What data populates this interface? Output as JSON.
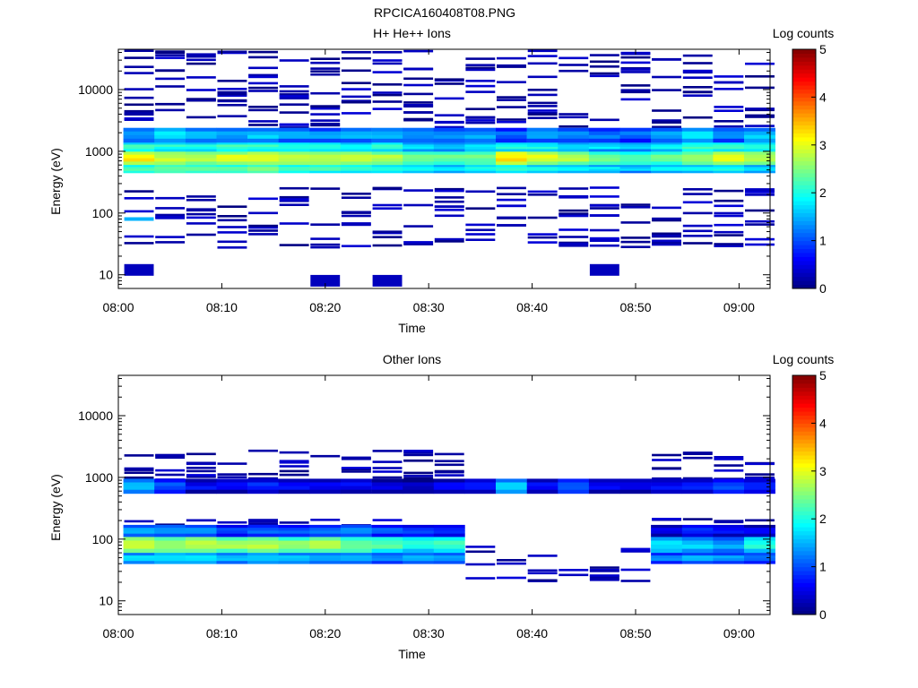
{
  "figure_title": "RPCICA160408T08.PNG",
  "chart_data": [
    {
      "type": "heatmap",
      "title": "H+ He++ Ions",
      "xlabel": "Time",
      "ylabel": "Energy (eV)",
      "y_scale": "log",
      "xlim": [
        "08:00",
        "09:03"
      ],
      "ylim": [
        6,
        45000
      ],
      "x_ticks": [
        "08:00",
        "08:10",
        "08:20",
        "08:30",
        "08:40",
        "08:50",
        "09:00"
      ],
      "y_ticks": [
        "10",
        "100",
        "1000",
        "10000"
      ],
      "colorbar": {
        "label": "Log counts",
        "range": [
          0,
          5
        ],
        "ticks": [
          "0",
          "1",
          "2",
          "3",
          "4",
          "5"
        ]
      },
      "time_bins": [
        "08:02",
        "08:05",
        "08:08",
        "08:11",
        "08:14",
        "08:17",
        "08:20",
        "08:23",
        "08:26",
        "08:29",
        "08:32",
        "08:35",
        "08:38",
        "08:41",
        "08:44",
        "08:47",
        "08:50",
        "08:53",
        "08:56",
        "08:59",
        "09:02"
      ],
      "bands": [
        {
          "energy_range": [
            600,
            1000
          ],
          "level": [
            3.4,
            3.0,
            3.0,
            3.1,
            3.2,
            3.1,
            3.0,
            3.0,
            2.9,
            2.7,
            2.5,
            2.6,
            3.4,
            3.1,
            2.9,
            2.7,
            2.5,
            2.6,
            2.9,
            3.2,
            3.0
          ]
        },
        {
          "energy_range": [
            450,
            600
          ],
          "level": [
            2.4,
            2.6,
            2.6,
            2.6,
            2.7,
            2.5,
            2.4,
            2.3,
            2.3,
            2.2,
            2.0,
            2.1,
            2.3,
            2.2,
            2.1,
            2.0,
            1.8,
            2.0,
            2.1,
            2.2,
            2.0
          ]
        },
        {
          "energy_range": [
            1000,
            1400
          ],
          "level": [
            2.3,
            2.2,
            2.1,
            2.4,
            2.3,
            2.3,
            2.2,
            2.1,
            2.2,
            2.0,
            1.8,
            2.0,
            2.2,
            2.1,
            2.0,
            1.9,
            1.8,
            2.0,
            2.3,
            2.4,
            2.2
          ]
        },
        {
          "energy_range": [
            1400,
            2400
          ],
          "level": [
            1.6,
            1.9,
            1.7,
            1.6,
            1.8,
            1.6,
            1.5,
            1.6,
            1.7,
            1.6,
            1.5,
            1.6,
            1.3,
            1.6,
            1.5,
            1.4,
            1.3,
            1.6,
            1.9,
            1.5,
            1.8
          ]
        }
      ],
      "sparse_levels": "0-1.2 Log counts above 2500 eV and below 300 eV",
      "highlights": [
        {
          "time": "08:02",
          "energy": 80,
          "level": 1.5
        },
        {
          "time": "08:02",
          "energy": 12,
          "level": 0.3
        },
        {
          "time": "08:20",
          "energy": 8,
          "level": 0.3
        },
        {
          "time": "08:26",
          "energy": 8,
          "level": 0.3
        },
        {
          "time": "08:47",
          "energy": 12,
          "level": 0.3
        }
      ]
    },
    {
      "type": "heatmap",
      "title": "Other Ions",
      "xlabel": "Time",
      "ylabel": "Energy (eV)",
      "y_scale": "log",
      "xlim": [
        "08:00",
        "09:03"
      ],
      "ylim": [
        6,
        45000
      ],
      "x_ticks": [
        "08:00",
        "08:10",
        "08:20",
        "08:30",
        "08:40",
        "08:50",
        "09:00"
      ],
      "y_ticks": [
        "10",
        "100",
        "1000",
        "10000"
      ],
      "colorbar": {
        "label": "Log counts",
        "range": [
          0,
          5
        ],
        "ticks": [
          "0",
          "1",
          "2",
          "3",
          "4",
          "5"
        ]
      },
      "time_bins": [
        "08:02",
        "08:05",
        "08:08",
        "08:11",
        "08:14",
        "08:17",
        "08:20",
        "08:23",
        "08:26",
        "08:29",
        "08:32",
        "08:35",
        "08:38",
        "08:41",
        "08:44",
        "08:47",
        "08:50",
        "08:53",
        "08:56",
        "08:59",
        "09:02"
      ],
      "bands": [
        {
          "energy_range": [
            60,
            110
          ],
          "level": [
            3.0,
            2.8,
            2.9,
            2.8,
            2.9,
            2.7,
            2.9,
            2.6,
            2.4,
            2.2,
            2.3,
            null,
            null,
            null,
            null,
            null,
            null,
            2.0,
            1.8,
            1.6,
            2.2
          ]
        },
        {
          "energy_range": [
            40,
            60
          ],
          "level": [
            1.8,
            2.0,
            1.9,
            1.7,
            1.9,
            1.8,
            1.6,
            1.7,
            1.5,
            1.6,
            1.5,
            null,
            null,
            null,
            null,
            null,
            null,
            1.4,
            1.6,
            1.5,
            1.4
          ]
        },
        {
          "energy_range": [
            110,
            170
          ],
          "level": [
            1.6,
            1.5,
            1.4,
            1.2,
            1.3,
            1.2,
            1.4,
            1.5,
            1.2,
            1.1,
            1.0,
            null,
            null,
            null,
            null,
            null,
            null,
            0.8,
            1.0,
            0.9,
            0.8
          ]
        },
        {
          "energy_range": [
            550,
            950
          ],
          "level": [
            1.6,
            1.2,
            0.8,
            0.8,
            1.0,
            0.8,
            0.8,
            0.8,
            0.6,
            0.6,
            0.8,
            0.8,
            1.8,
            0.8,
            1.3,
            0.8,
            0.8,
            0.8,
            0.9,
            1.2,
            1.0
          ]
        }
      ],
      "sparse_levels": "0-1 Log counts elsewhere; no counts 08:36-08:53 below 40 eV except isolated bins"
    }
  ]
}
